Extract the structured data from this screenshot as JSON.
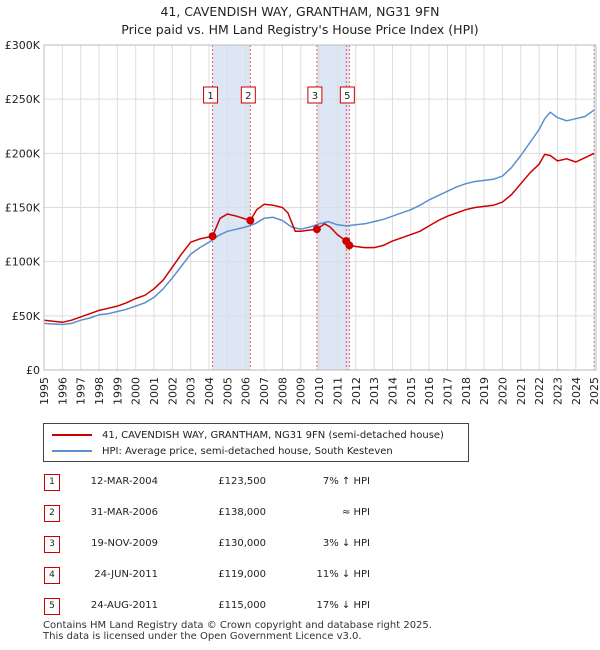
{
  "title_line1": "41, CAVENDISH WAY, GRANTHAM, NG31 9FN",
  "title_line2": "Price paid vs. HM Land Registry's House Price Index (HPI)",
  "colors": {
    "property": "#cc0000",
    "hpi": "#5b8fd0",
    "shade": "#dde6f5",
    "grid": "#dddddd"
  },
  "chart_data": {
    "type": "line",
    "x_range": [
      1995,
      2025.1
    ],
    "ylim": [
      0,
      300000
    ],
    "y_ticks": [
      0,
      50000,
      100000,
      150000,
      200000,
      250000,
      300000
    ],
    "y_tick_labels": [
      "£0",
      "£50K",
      "£100K",
      "£150K",
      "£200K",
      "£250K",
      "£300K"
    ],
    "x_tick_labels": [
      "1995",
      "1996",
      "1997",
      "1998",
      "1999",
      "2000",
      "2001",
      "2002",
      "2003",
      "2004",
      "2005",
      "2006",
      "2007",
      "2008",
      "2009",
      "2010",
      "2011",
      "2012",
      "2013",
      "2014",
      "2015",
      "2016",
      "2017",
      "2018",
      "2019",
      "2020",
      "2021",
      "2022",
      "2023",
      "2024",
      "2025"
    ],
    "shaded_periods": [
      [
        2004.19,
        2006.25
      ],
      [
        2009.88,
        2011.65
      ]
    ],
    "series": [
      {
        "name": "41, CAVENDISH WAY, GRANTHAM, NG31 9FN (semi-detached house)",
        "x": [
          1995,
          1995.5,
          1996,
          1996.5,
          1997,
          1997.5,
          1998,
          1998.5,
          1999,
          1999.5,
          2000,
          2000.5,
          2001,
          2001.5,
          2002,
          2002.5,
          2003,
          2003.5,
          2004.19,
          2004.6,
          2005,
          2005.5,
          2006.25,
          2006.6,
          2007,
          2007.5,
          2008,
          2008.3,
          2008.7,
          2009,
          2009.4,
          2009.88,
          2010.3,
          2010.6,
          2011,
          2011.48,
          2011.65,
          2012,
          2012.5,
          2013,
          2013.5,
          2014,
          2014.5,
          2015,
          2015.5,
          2016,
          2016.5,
          2017,
          2017.5,
          2018,
          2018.5,
          2019,
          2019.5,
          2020,
          2020.5,
          2021,
          2021.5,
          2022,
          2022.3,
          2022.6,
          2023,
          2023.5,
          2024,
          2024.5,
          2025
        ],
        "y": [
          46000,
          45000,
          44000,
          46000,
          49000,
          52000,
          55000,
          57000,
          59000,
          62000,
          66000,
          69000,
          75000,
          83000,
          95000,
          107000,
          118000,
          121000,
          123500,
          140000,
          144000,
          142000,
          138000,
          148000,
          153000,
          152000,
          150000,
          145000,
          128000,
          128000,
          129000,
          130000,
          135000,
          132000,
          125000,
          119000,
          115000,
          114000,
          113000,
          113000,
          115000,
          119000,
          122000,
          125000,
          128000,
          133000,
          138000,
          142000,
          145000,
          148000,
          150000,
          151000,
          152000,
          155000,
          162000,
          172000,
          182000,
          190000,
          199000,
          198000,
          193000,
          195000,
          192000,
          196000,
          200000
        ]
      },
      {
        "name": "HPI: Average price, semi-detached house, South Kesteven",
        "x": [
          1995,
          1995.5,
          1996,
          1996.5,
          1997,
          1997.5,
          1998,
          1998.5,
          1999,
          1999.5,
          2000,
          2000.5,
          2001,
          2001.5,
          2002,
          2002.5,
          2003,
          2003.5,
          2004,
          2004.5,
          2005,
          2005.5,
          2006,
          2006.5,
          2007,
          2007.5,
          2008,
          2008.5,
          2009,
          2009.5,
          2010,
          2010.5,
          2011,
          2011.5,
          2012,
          2012.5,
          2013,
          2013.5,
          2014,
          2014.5,
          2015,
          2015.5,
          2016,
          2016.5,
          2017,
          2017.5,
          2018,
          2018.5,
          2019,
          2019.5,
          2020,
          2020.5,
          2021,
          2021.5,
          2022,
          2022.3,
          2022.6,
          2023,
          2023.5,
          2024,
          2024.5,
          2025
        ],
        "y": [
          43000,
          42500,
          42000,
          43000,
          46000,
          48000,
          51000,
          52000,
          54000,
          56000,
          59000,
          62000,
          67000,
          75000,
          85000,
          96000,
          107000,
          113000,
          118000,
          124000,
          128000,
          130000,
          132000,
          135000,
          140000,
          141000,
          138000,
          132000,
          130000,
          132000,
          135000,
          137000,
          134000,
          133000,
          134000,
          135000,
          137000,
          139000,
          142000,
          145000,
          148000,
          152000,
          157000,
          161000,
          165000,
          169000,
          172000,
          174000,
          175000,
          176000,
          179000,
          187000,
          198000,
          210000,
          222000,
          232000,
          238000,
          233000,
          230000,
          232000,
          234000,
          240000
        ]
      }
    ],
    "sale_markers": [
      {
        "label": "1",
        "x": 2004.19,
        "y": 123500
      },
      {
        "label": "2",
        "x": 2006.25,
        "y": 138000
      },
      {
        "label": "3",
        "x": 2009.88,
        "y": 130000
      },
      {
        "label": "4",
        "x": 2011.48,
        "y": 119000
      },
      {
        "label": "5",
        "x": 2011.65,
        "y": 115000
      }
    ],
    "marker_boxes": [
      {
        "label": "1",
        "x": 2004.19
      },
      {
        "label": "2",
        "x": 2006.25
      },
      {
        "label": "3",
        "x": 2009.88
      },
      {
        "label": "5",
        "x": 2011.65
      }
    ]
  },
  "legend": {
    "property_label": "41, CAVENDISH WAY, GRANTHAM, NG31 9FN (semi-detached house)",
    "hpi_label": "HPI: Average price, semi-detached house, South Kesteven"
  },
  "sales": [
    {
      "num": "1",
      "date": "12-MAR-2004",
      "price": "£123,500",
      "hpi": "7% ↑ HPI"
    },
    {
      "num": "2",
      "date": "31-MAR-2006",
      "price": "£138,000",
      "hpi": "≈ HPI"
    },
    {
      "num": "3",
      "date": "19-NOV-2009",
      "price": "£130,000",
      "hpi": "3% ↓ HPI"
    },
    {
      "num": "4",
      "date": "24-JUN-2011",
      "price": "£119,000",
      "hpi": "11% ↓ HPI"
    },
    {
      "num": "5",
      "date": "24-AUG-2011",
      "price": "£115,000",
      "hpi": "17% ↓ HPI"
    }
  ],
  "footer_line1": "Contains HM Land Registry data © Crown copyright and database right 2025.",
  "footer_line2": "This data is licensed under the Open Government Licence v3.0."
}
